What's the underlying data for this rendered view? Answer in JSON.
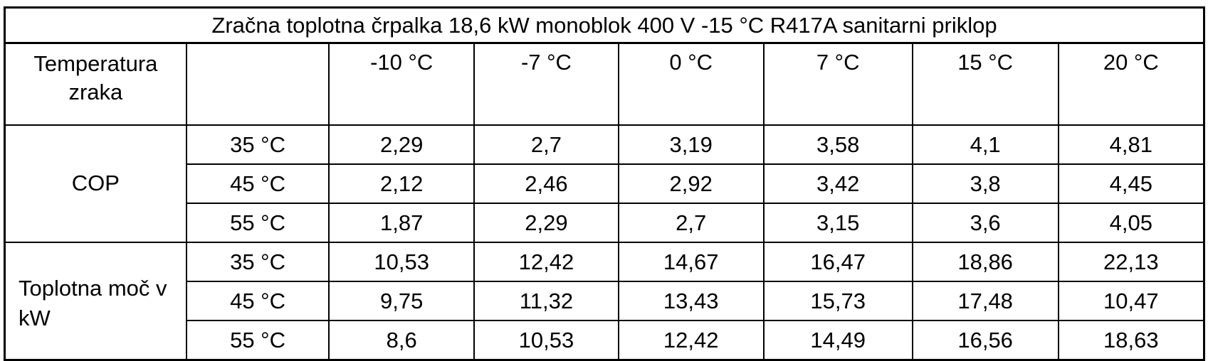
{
  "table": {
    "title": "Zračna toplotna črpalka 18,6 kW monoblok 400 V -15 °C R417A sanitarni priklop",
    "header": {
      "first": "Temperatura zraka",
      "second": "",
      "columns": [
        "-10 °C",
        "-7 °C",
        "0 °C",
        "7 °C",
        "15 °C",
        "20 °C"
      ]
    },
    "groups": [
      {
        "label": "COP",
        "rows": [
          {
            "temp": "35 °C",
            "values": [
              "2,29",
              "2,7",
              "3,19",
              "3,58",
              "4,1",
              "4,81"
            ]
          },
          {
            "temp": "45 °C",
            "values": [
              "2,12",
              "2,46",
              "2,92",
              "3,42",
              "3,8",
              "4,45"
            ]
          },
          {
            "temp": "55 °C",
            "values": [
              "1,87",
              "2,29",
              "2,7",
              "3,15",
              "3,6",
              "4,05"
            ]
          }
        ]
      },
      {
        "label": "Toplotna moč v kW",
        "rows": [
          {
            "temp": "35 °C",
            "values": [
              "10,53",
              "12,42",
              "14,67",
              "16,47",
              "18,86",
              "22,13"
            ]
          },
          {
            "temp": "45 °C",
            "values": [
              "9,75",
              "11,32",
              "13,43",
              "15,73",
              "17,48",
              "10,47"
            ]
          },
          {
            "temp": "55 °C",
            "values": [
              "8,6",
              "10,53",
              "12,42",
              "14,49",
              "16,56",
              "18,63"
            ]
          }
        ]
      }
    ]
  }
}
